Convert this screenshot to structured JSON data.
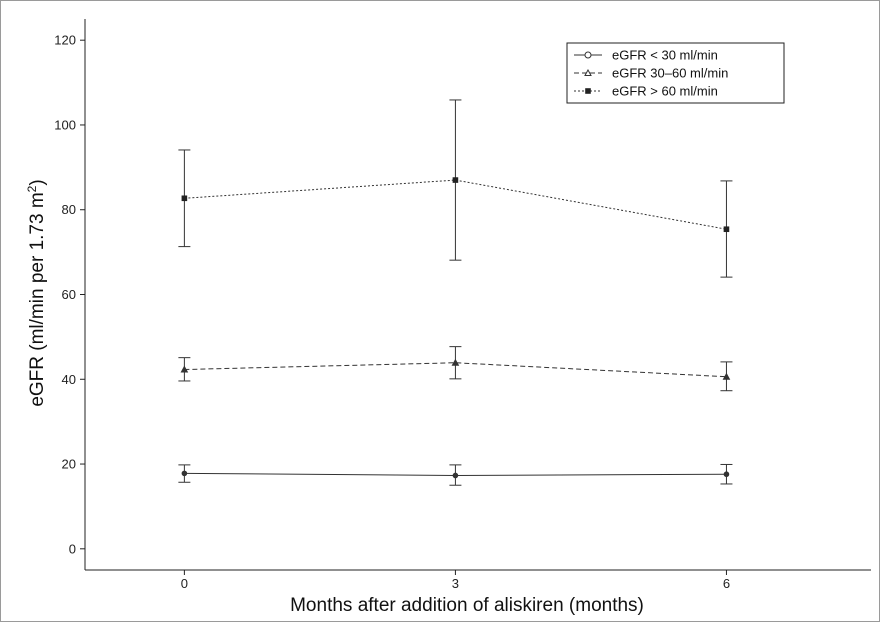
{
  "chart_data": {
    "type": "line",
    "xlabel": "Months after addition of aliskiren (months)",
    "ylabel": "eGFR (ml/min per 1.73 m",
    "ylabel_sup": "2",
    "ylabel_close": ")",
    "x": [
      0,
      3,
      6
    ],
    "x_ticks": [
      "0",
      "3",
      "6"
    ],
    "xlim": [
      -1.1,
      7.6
    ],
    "ylim": [
      -5,
      125
    ],
    "y_ticks": [
      "0",
      "20",
      "40",
      "60",
      "80",
      "100",
      "120"
    ],
    "grid": false,
    "legend_position": "top-right",
    "series": [
      {
        "name": "eGFR < 30 ml/min",
        "marker": "circle",
        "line_style": "solid",
        "values": [
          17.8,
          17.3,
          17.6
        ],
        "error_low": [
          15.7,
          15.0,
          15.3
        ],
        "error_high": [
          19.8,
          19.8,
          19.9
        ]
      },
      {
        "name": "eGFR 30–60 ml/min",
        "marker": "triangle",
        "line_style": "dashed",
        "values": [
          42.3,
          43.9,
          40.6
        ],
        "error_low": [
          39.6,
          40.1,
          37.3
        ],
        "error_high": [
          45.1,
          47.7,
          44.1
        ]
      },
      {
        "name": "eGFR > 60 ml/min",
        "marker": "square",
        "line_style": "dotted",
        "values": [
          82.7,
          87.0,
          75.4
        ],
        "error_low": [
          71.3,
          68.1,
          64.1
        ],
        "error_high": [
          94.1,
          105.9,
          86.8
        ]
      }
    ]
  }
}
